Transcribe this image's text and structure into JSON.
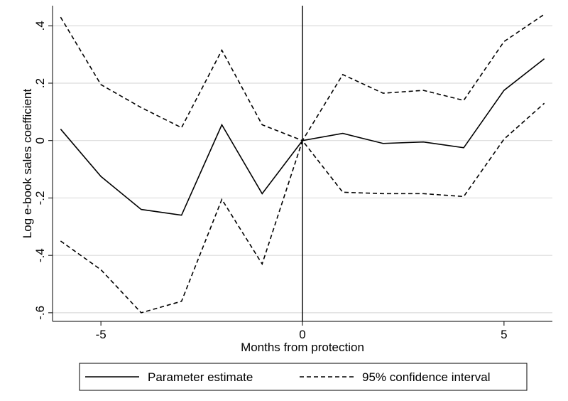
{
  "chart_data": {
    "type": "line",
    "title": "",
    "xlabel": "Months from protection",
    "ylabel": "Log e-book sales coefficient",
    "xlim": [
      -6.2,
      6.2
    ],
    "ylim": [
      -0.63,
      0.47
    ],
    "xticks": [
      -5,
      0,
      5
    ],
    "xtick_labels": [
      "-5",
      "0",
      "5"
    ],
    "yticks": [
      0.4,
      0.2,
      0,
      -0.2,
      -0.4,
      -0.6
    ],
    "ytick_labels": [
      ".4",
      ".2",
      "0",
      "-.2",
      "-.4",
      "-.6"
    ],
    "grid": "horizontal",
    "vertical_reference_line_x": 0,
    "legend_position": "bottom",
    "colors": {
      "series": "#000000",
      "grid": "#dcdcdc",
      "axis": "#000000"
    },
    "x": [
      -6,
      -5,
      -4,
      -3,
      -2,
      -1,
      0,
      1,
      2,
      3,
      4,
      5,
      6
    ],
    "series": [
      {
        "name": "Parameter estimate",
        "style": "solid",
        "values": [
          0.04,
          -0.125,
          -0.24,
          -0.26,
          0.055,
          -0.185,
          0.0,
          0.025,
          -0.01,
          -0.005,
          -0.025,
          0.175,
          0.285
        ]
      },
      {
        "name": "95% confidence interval",
        "style": "dashed",
        "values": [
          0.43,
          0.195,
          0.115,
          0.045,
          0.315,
          0.055,
          0.0,
          0.23,
          0.165,
          0.175,
          0.14,
          0.345,
          0.44
        ]
      },
      {
        "name": "",
        "style": "dashed",
        "values": [
          -0.35,
          -0.45,
          -0.6,
          -0.56,
          -0.205,
          -0.43,
          0.0,
          -0.18,
          -0.185,
          -0.185,
          -0.195,
          0.005,
          0.13
        ]
      }
    ]
  },
  "legend": {
    "items": [
      {
        "label": "Parameter estimate",
        "style": "solid"
      },
      {
        "label": "95% confidence interval",
        "style": "dashed"
      }
    ]
  }
}
